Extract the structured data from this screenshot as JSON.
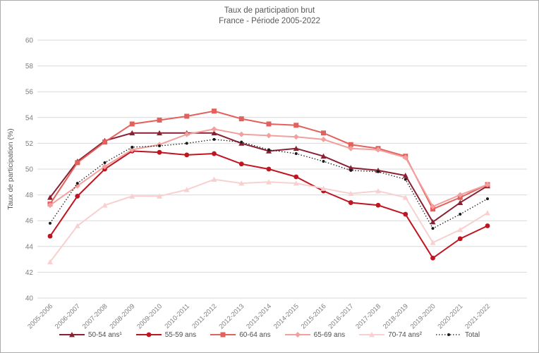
{
  "chart_data": {
    "type": "line",
    "title": "Taux de participation brut",
    "subtitle": "France - Période 2005-2022",
    "ylabel": "Taux de participation (%)",
    "ylim": [
      40,
      60
    ],
    "ytick_step": 2,
    "grid": true,
    "legend_position": "bottom",
    "categories": [
      "2005-2006",
      "2006-2007",
      "2007-2008",
      "2008-2009",
      "2009-2010",
      "2010-2011",
      "2011-2012",
      "2012-2013",
      "2013-2014",
      "2014-2015",
      "2015-2016",
      "2016-2017",
      "2017-2018",
      "2018-2019",
      "2019-2020",
      "2020-2021",
      "2021-2022"
    ],
    "series": [
      {
        "name": "50-54 ans¹",
        "marker": "triangle",
        "dash": "solid",
        "color": "#8a2033",
        "values": [
          47.8,
          50.6,
          52.2,
          52.8,
          52.8,
          52.8,
          52.8,
          52.0,
          51.4,
          51.6,
          51.0,
          50.1,
          49.9,
          49.5,
          45.9,
          47.4,
          48.7
        ]
      },
      {
        "name": "55-59 ans",
        "marker": "circle",
        "dash": "solid",
        "color": "#c01521",
        "values": [
          44.8,
          47.9,
          50.0,
          51.4,
          51.3,
          51.1,
          51.2,
          50.4,
          50.0,
          49.4,
          48.3,
          47.4,
          47.2,
          46.5,
          43.1,
          44.6,
          45.6
        ]
      },
      {
        "name": "60-64 ans",
        "marker": "square",
        "dash": "solid",
        "color": "#e3615c",
        "values": [
          47.3,
          50.5,
          52.1,
          53.5,
          53.8,
          54.1,
          54.5,
          53.9,
          53.5,
          53.4,
          52.8,
          51.9,
          51.6,
          51.0,
          46.9,
          47.8,
          48.8
        ]
      },
      {
        "name": "65-69 ans",
        "marker": "diamond",
        "dash": "solid",
        "color": "#f1a09e",
        "values": [
          47.2,
          48.7,
          50.2,
          51.5,
          51.9,
          52.7,
          53.1,
          52.7,
          52.6,
          52.5,
          52.3,
          51.6,
          51.5,
          50.9,
          47.1,
          48.0,
          48.8
        ]
      },
      {
        "name": "70-74 ans²",
        "marker": "triangle",
        "dash": "solid",
        "color": "#f8d0d0",
        "values": [
          42.8,
          45.6,
          47.2,
          47.9,
          47.9,
          48.4,
          49.2,
          48.9,
          49.0,
          48.9,
          48.5,
          48.1,
          48.3,
          47.8,
          44.3,
          45.3,
          46.6
        ]
      },
      {
        "name": "Total",
        "marker": "dot",
        "dash": "dotted",
        "color": "#1a1a1a",
        "values": [
          45.8,
          48.9,
          50.5,
          51.7,
          51.8,
          52.0,
          52.3,
          52.1,
          51.5,
          51.2,
          50.6,
          49.9,
          49.8,
          49.2,
          45.4,
          46.5,
          47.7
        ]
      }
    ],
    "colors": {
      "grid": "#d9d9d9",
      "tick_text": "#7f7f7f",
      "title_text": "#595959"
    }
  }
}
